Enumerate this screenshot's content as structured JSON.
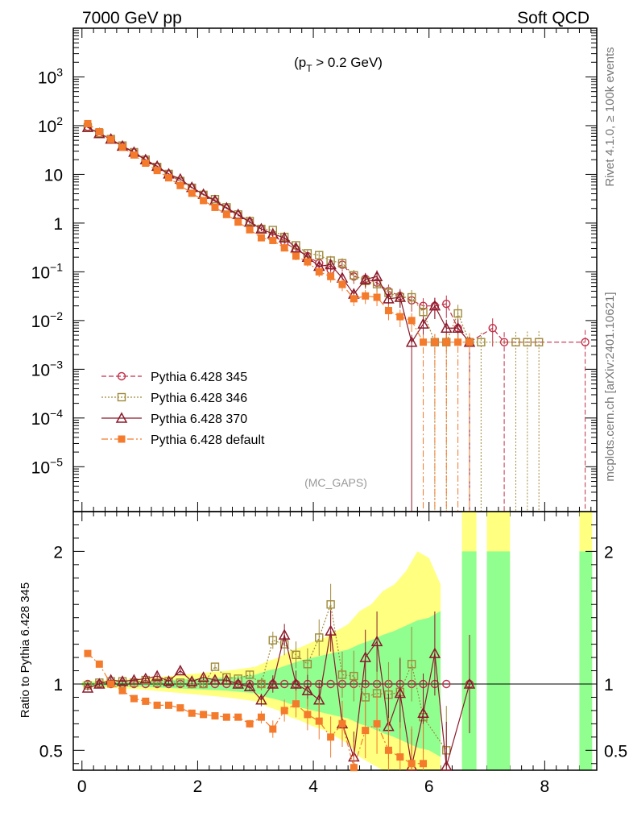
{
  "header": {
    "left": "7000 GeV pp",
    "right": "Soft QCD"
  },
  "side_text": {
    "top": "Rivet 4.1.0, ≥ 100k events",
    "bottom": "mcplots.cern.ch [arXiv:2401.10621]"
  },
  "chart_data": {
    "type": "line",
    "title": "(p_T > 0.2 GeV)",
    "title_parts": {
      "main": "(p",
      "sub": "T",
      "rest": " > 0.2 GeV)"
    },
    "watermark": "(MC_GAPS)",
    "xlabel": "",
    "ylabel": "",
    "ratio_ylabel": "Ratio to Pythia 6.428 345",
    "xlim": [
      -0.15,
      8.9
    ],
    "ylim_log": [
      1.2e-06,
      10000.0
    ],
    "ratio_ylim": [
      0.35,
      2.3
    ],
    "x_ticks": [
      {
        "v": 0,
        "t": "0"
      },
      {
        "v": 2,
        "t": "2"
      },
      {
        "v": 4,
        "t": "4"
      },
      {
        "v": 6,
        "t": "6"
      },
      {
        "v": 8,
        "t": "8"
      }
    ],
    "y_ticks": [
      {
        "v": 1000,
        "base": "10",
        "exp": "3"
      },
      {
        "v": 100,
        "base": "10",
        "exp": "2"
      },
      {
        "v": 10,
        "base": "10",
        "exp": ""
      },
      {
        "v": 1,
        "base": "1",
        "exp": ""
      },
      {
        "v": 0.1,
        "base": "10",
        "exp": "−1"
      },
      {
        "v": 0.01,
        "base": "10",
        "exp": "−2"
      },
      {
        "v": 0.001,
        "base": "10",
        "exp": "−3"
      },
      {
        "v": 0.0001,
        "base": "10",
        "exp": "−4"
      },
      {
        "v": 1e-05,
        "base": "10",
        "exp": "−5"
      }
    ],
    "ratio_ticks": [
      {
        "v": 0.5,
        "t": "0.5"
      },
      {
        "v": 1,
        "t": "1"
      },
      {
        "v": 2,
        "t": "2"
      }
    ],
    "legend_position": "lower-left",
    "series": [
      {
        "name": "Pythia 6.428 345",
        "color": "#c0304a",
        "marker": "circle-open",
        "dash": "6,3",
        "x": [
          0.1,
          0.3,
          0.5,
          0.7,
          0.9,
          1.1,
          1.3,
          1.5,
          1.7,
          1.9,
          2.1,
          2.3,
          2.5,
          2.7,
          2.9,
          3.1,
          3.3,
          3.5,
          3.7,
          3.9,
          4.1,
          4.3,
          4.5,
          4.7,
          4.9,
          5.1,
          5.3,
          5.5,
          5.7,
          5.9,
          6.1,
          6.3,
          6.5,
          6.7,
          7.1,
          7.3,
          8.7
        ],
        "values": [
          95,
          70,
          52,
          38,
          28,
          19.5,
          14,
          10,
          7.2,
          5.3,
          3.8,
          2.8,
          2.0,
          1.45,
          1.05,
          0.76,
          0.55,
          0.4,
          0.29,
          0.21,
          0.15,
          0.11,
          0.14,
          0.08,
          0.072,
          0.06,
          0.04,
          0.032,
          0.026,
          0.02,
          0.02,
          0.022,
          0.007,
          0.0036,
          0.007,
          0.0036,
          0.0036
        ]
      },
      {
        "name": "Pythia 6.428 346",
        "color": "#a08a3a",
        "marker": "square-open",
        "dash": "2,2",
        "x": [
          0.1,
          0.3,
          0.5,
          0.7,
          0.9,
          1.1,
          1.3,
          1.5,
          1.7,
          1.9,
          2.1,
          2.3,
          2.5,
          2.7,
          2.9,
          3.1,
          3.3,
          3.5,
          3.7,
          3.9,
          4.1,
          4.3,
          4.5,
          4.7,
          4.9,
          5.1,
          5.3,
          5.5,
          5.7,
          5.9,
          6.1,
          6.3,
          6.5,
          6.7,
          6.9,
          7.5,
          7.7,
          7.9
        ],
        "values": [
          93,
          71,
          53,
          39,
          28.5,
          20,
          14.2,
          10.2,
          7.3,
          5.3,
          3.8,
          3.1,
          2.1,
          1.5,
          1.1,
          0.76,
          0.72,
          0.52,
          0.35,
          0.24,
          0.22,
          0.17,
          0.15,
          0.085,
          0.065,
          0.056,
          0.037,
          0.03,
          0.03,
          0.015,
          0.0036,
          0.0036,
          0.014,
          0.0036,
          0.0036,
          0.0036,
          0.0036,
          0.0036
        ]
      },
      {
        "name": "Pythia 6.428 370",
        "color": "#8b1a2b",
        "marker": "triangle-open",
        "dash": "",
        "x": [
          0.1,
          0.3,
          0.5,
          0.7,
          0.9,
          1.1,
          1.3,
          1.5,
          1.7,
          1.9,
          2.1,
          2.3,
          2.5,
          2.7,
          2.9,
          3.1,
          3.3,
          3.5,
          3.7,
          3.9,
          4.1,
          4.3,
          4.5,
          4.7,
          4.9,
          5.1,
          5.3,
          5.5,
          5.7,
          5.9,
          6.1,
          6.3,
          6.5,
          6.7
        ],
        "values": [
          92,
          69,
          53,
          38,
          28.5,
          20,
          14.7,
          10.2,
          8.0,
          5.4,
          3.9,
          2.9,
          2.05,
          1.5,
          1.05,
          0.76,
          0.6,
          0.5,
          0.31,
          0.2,
          0.13,
          0.14,
          0.075,
          0.035,
          0.07,
          0.08,
          0.028,
          0.03,
          0.0036,
          0.0085,
          0.02,
          0.007,
          0.007,
          0.0036
        ]
      },
      {
        "name": "Pythia 6.428 default",
        "color": "#f47a2c",
        "marker": "square-filled",
        "dash": "8,3,2,3",
        "x": [
          0.1,
          0.3,
          0.5,
          0.7,
          0.9,
          1.1,
          1.3,
          1.5,
          1.7,
          1.9,
          2.1,
          2.3,
          2.5,
          2.7,
          2.9,
          3.1,
          3.3,
          3.5,
          3.7,
          3.9,
          4.1,
          4.3,
          4.5,
          4.7,
          4.9,
          5.1,
          5.3,
          5.5,
          5.7,
          5.9,
          6.1,
          6.3,
          6.5,
          6.7
        ],
        "values": [
          110,
          75,
          52,
          36,
          25,
          17,
          12,
          8.5,
          5.9,
          4.1,
          2.9,
          2.1,
          1.5,
          1.05,
          0.73,
          0.5,
          0.44,
          0.31,
          0.21,
          0.16,
          0.1,
          0.08,
          0.055,
          0.028,
          0.032,
          0.03,
          0.016,
          0.012,
          0.01,
          0.0036,
          0.0036,
          0.0036,
          0.0036,
          0.0036
        ]
      }
    ],
    "ratio_series": [
      {
        "name": "Pythia 6.428 346",
        "x": [
          0.1,
          0.3,
          0.5,
          0.7,
          0.9,
          1.1,
          1.3,
          1.5,
          1.7,
          1.9,
          2.1,
          2.3,
          2.5,
          2.7,
          2.9,
          3.1,
          3.3,
          3.5,
          3.7,
          3.9,
          4.1,
          4.3,
          4.5,
          4.7,
          4.9,
          5.1,
          5.3,
          5.5,
          5.7,
          5.9,
          6.3
        ],
        "values": [
          0.99,
          1.01,
          1.02,
          1.02,
          1.01,
          1.03,
          1.01,
          1.02,
          1.01,
          1.0,
          1.0,
          1.13,
          1.05,
          1.04,
          1.07,
          1.0,
          1.33,
          1.3,
          1.22,
          1.15,
          1.35,
          1.6,
          1.07,
          1.06,
          0.9,
          0.93,
          0.92,
          0.94,
          1.15,
          0.75,
          0.5
        ]
      },
      {
        "name": "Pythia 6.428 370",
        "x": [
          0.1,
          0.3,
          0.5,
          0.7,
          0.9,
          1.1,
          1.3,
          1.5,
          1.7,
          1.9,
          2.1,
          2.3,
          2.5,
          2.7,
          2.9,
          3.1,
          3.3,
          3.5,
          3.7,
          3.9,
          4.1,
          4.3,
          4.5,
          4.7,
          4.9,
          5.1,
          5.3,
          5.5,
          5.7,
          5.9,
          6.1,
          6.3,
          6.7
        ],
        "values": [
          0.97,
          1.0,
          1.03,
          1.02,
          1.03,
          1.04,
          1.06,
          1.02,
          1.1,
          1.02,
          1.05,
          1.03,
          1.03,
          1.0,
          0.98,
          0.88,
          1.0,
          1.37,
          1.0,
          0.95,
          0.88,
          1.4,
          0.7,
          0.45,
          1.2,
          1.32,
          0.68,
          0.93,
          0.38,
          0.78,
          1.23,
          0.38,
          1.0
        ]
      },
      {
        "name": "Pythia 6.428 default",
        "x": [
          0.1,
          0.3,
          0.5,
          0.7,
          0.9,
          1.1,
          1.3,
          1.5,
          1.7,
          1.9,
          2.1,
          2.3,
          2.5,
          2.7,
          2.9,
          3.1,
          3.3,
          3.5,
          3.7,
          3.9,
          4.1,
          4.3,
          4.5,
          4.7,
          4.9,
          5.1,
          5.3,
          5.5,
          5.7,
          5.9
        ],
        "values": [
          1.23,
          1.15,
          1.0,
          0.95,
          0.89,
          0.87,
          0.84,
          0.84,
          0.82,
          0.78,
          0.77,
          0.76,
          0.75,
          0.75,
          0.7,
          0.75,
          0.66,
          0.8,
          0.85,
          0.77,
          0.72,
          0.6,
          0.7,
          0.37,
          0.65,
          0.7,
          0.5,
          0.45,
          0.4,
          0.4
        ]
      }
    ],
    "ratio_bands": {
      "x": [
        0.0,
        0.5,
        1.0,
        1.5,
        2.0,
        2.5,
        3.0,
        3.2,
        3.4,
        3.6,
        3.8,
        4.0,
        4.2,
        4.4,
        4.6,
        4.8,
        5.0,
        5.2,
        5.4,
        5.6,
        5.8,
        6.0,
        6.2
      ],
      "green_half_width": [
        0.01,
        0.02,
        0.02,
        0.03,
        0.04,
        0.05,
        0.07,
        0.1,
        0.12,
        0.15,
        0.18,
        0.2,
        0.22,
        0.24,
        0.26,
        0.3,
        0.33,
        0.37,
        0.4,
        0.44,
        0.48,
        0.5,
        0.55
      ],
      "yellow_half_width": [
        0.02,
        0.03,
        0.04,
        0.06,
        0.08,
        0.1,
        0.13,
        0.17,
        0.2,
        0.25,
        0.28,
        0.32,
        0.35,
        0.4,
        0.45,
        0.55,
        0.6,
        0.7,
        0.75,
        0.85,
        1.0,
        0.95,
        0.75
      ],
      "high_x_blocks": [
        [
          6.57,
          6.82
        ],
        [
          7.0,
          7.4
        ],
        [
          8.6,
          8.82
        ]
      ]
    }
  }
}
